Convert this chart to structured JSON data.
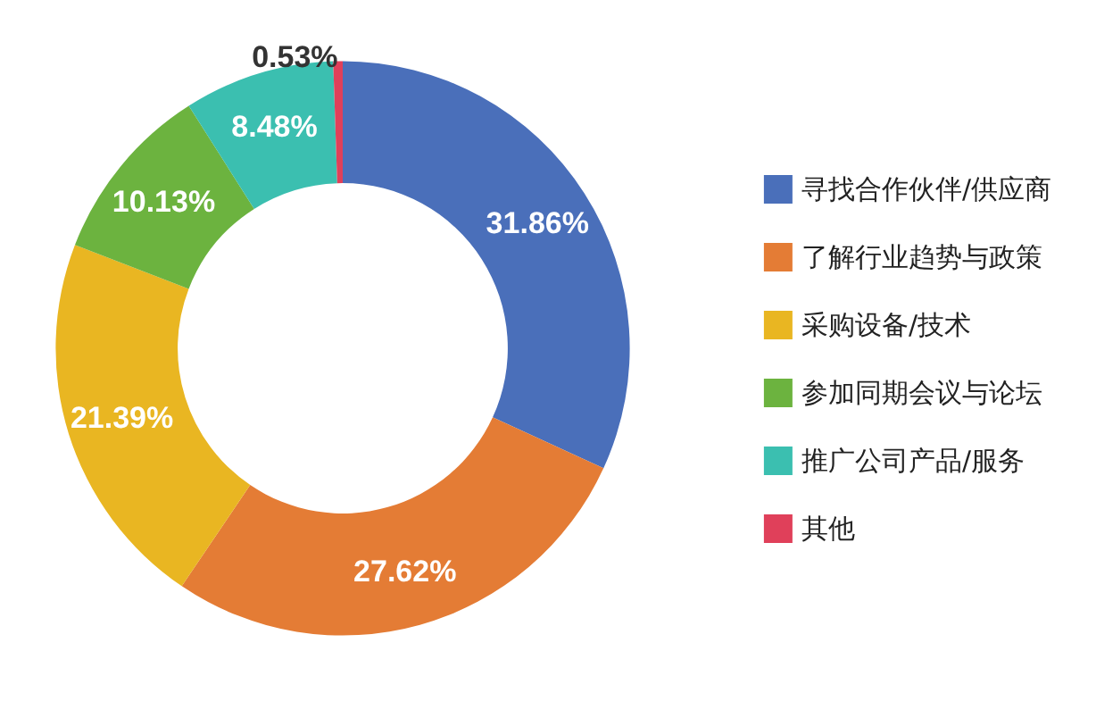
{
  "chart_data": {
    "type": "donut",
    "categories": [
      "寻找合作伙伴/供应商",
      "了解行业趋势与政策",
      "采购设备/技术",
      "参加同期会议与论坛",
      "推广公司产品/服务",
      "其他"
    ],
    "values": [
      31.86,
      27.62,
      21.39,
      10.13,
      8.48,
      0.53
    ],
    "colors": [
      "#4a6fba",
      "#e47c35",
      "#e9b622",
      "#6cb33f",
      "#3bbfb0",
      "#e0405a"
    ],
    "value_labels": [
      "31.86%",
      "27.62%",
      "21.39%",
      "10.13%",
      "8.48%",
      "0.53%"
    ],
    "legend": "right"
  }
}
